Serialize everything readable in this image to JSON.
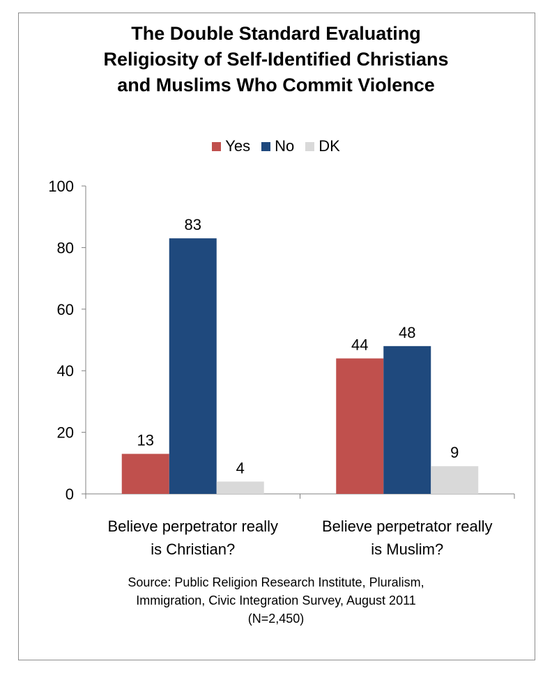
{
  "title_lines": [
    "The Double Standard Evaluating",
    "Religiosity of Self-Identified Christians",
    "and Muslims Who Commit Violence"
  ],
  "source_lines": [
    "Source: Public Religion Research Institute, Pluralism,",
    "Immigration, Civic Integration Survey, August 2011",
    "(N=2,450)"
  ],
  "chart_data": {
    "type": "bar",
    "title": "The Double Standard Evaluating Religiosity of Self-Identified Christians and Muslims Who Commit Violence",
    "categories": [
      [
        "Believe perpetrator really",
        "is Christian?"
      ],
      [
        "Believe perpetrator really",
        "is Muslim?"
      ]
    ],
    "series": [
      {
        "name": "Yes",
        "color": "#c0504d",
        "values": [
          13,
          44
        ]
      },
      {
        "name": "No",
        "color": "#1f497d",
        "values": [
          83,
          48
        ]
      },
      {
        "name": "DK",
        "color": "#d9d9d9",
        "values": [
          4,
          9
        ]
      }
    ],
    "ylim": [
      0,
      100
    ],
    "yticks": [
      0,
      20,
      40,
      60,
      80,
      100
    ],
    "legend_position": "top",
    "grid": false,
    "data_labels": true
  }
}
